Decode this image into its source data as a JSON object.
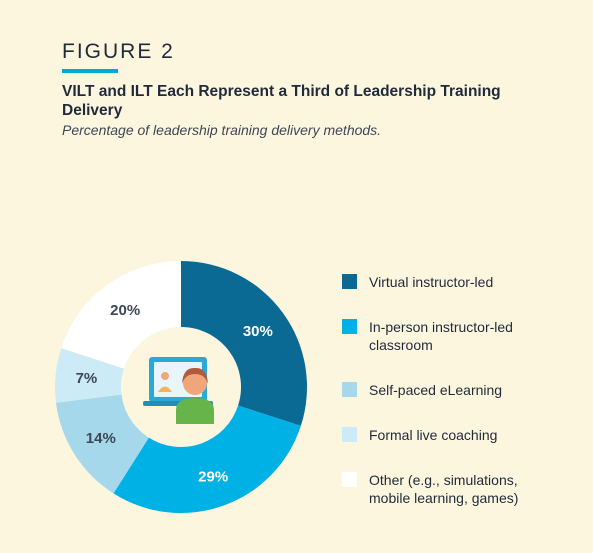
{
  "figure_label": "FIGURE 2",
  "title": "VILT and ILT Each Represent a Third of Leadership Training Delivery",
  "subtitle": "Percentage of leadership training delivery methods.",
  "colors": {
    "background": "#fdf6df",
    "accent": "#00a9d8",
    "virtual": "#0a6a93",
    "in_person": "#00b1e6",
    "self_paced": "#a5d8ea",
    "coaching": "#cdebf6",
    "other": "#ffffff"
  },
  "center_icon": "virtual-training-laptop-icon",
  "chart_data": {
    "type": "pie",
    "donut": true,
    "start_angle": "12 o'clock, clockwise",
    "legend_position": "right",
    "categories": [
      "Virtual instructor-led",
      "In-person instructor-led classroom",
      "Self-paced eLearning",
      "Formal live coaching",
      "Other (e.g., simulations, mobile learning, games)"
    ],
    "values": [
      30,
      29,
      14,
      7,
      20
    ],
    "value_labels": [
      "30%",
      "29%",
      "14%",
      "7%",
      "20%"
    ],
    "colors": [
      "#0a6a93",
      "#00b1e6",
      "#a5d8ea",
      "#cdebf6",
      "#ffffff"
    ],
    "label_colors": [
      "#ffffff",
      "#ffffff",
      "#3d4756",
      "#3d4756",
      "#3d4756"
    ]
  },
  "legend": [
    {
      "text": "Virtual instructor-led"
    },
    {
      "text": "In-person instructor-led classroom"
    },
    {
      "text": "Self-paced eLearning"
    },
    {
      "text": "Formal live coaching"
    },
    {
      "text": "Other (e.g., simulations, mobile learning, games)"
    }
  ]
}
